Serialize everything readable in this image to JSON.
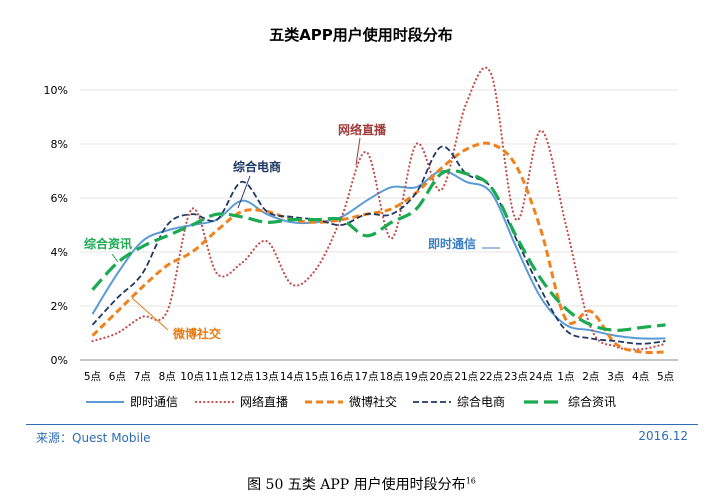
{
  "chart_data": {
    "type": "line",
    "title": "五类APP用户使用时段分布",
    "xlabel": "",
    "ylabel": "",
    "ylim": [
      0,
      10
    ],
    "yticks": [
      0,
      2,
      4,
      6,
      8,
      10
    ],
    "ytick_labels": [
      "0%",
      "2%",
      "4%",
      "6%",
      "8%",
      "10%"
    ],
    "categories": [
      "5点",
      "6点",
      "7点",
      "8点",
      "10点",
      "11点",
      "12点",
      "13点",
      "14点",
      "15点",
      "16点",
      "17点",
      "18点",
      "19点",
      "20点",
      "21点",
      "22点",
      "23点",
      "24点",
      "1点",
      "2点",
      "3点",
      "4点",
      "5点"
    ],
    "series": [
      {
        "name": "即时通信",
        "color": "#5b9bd5",
        "dash": "solid",
        "values": [
          1.7,
          3.2,
          4.4,
          4.8,
          5.0,
          5.2,
          5.9,
          5.4,
          5.1,
          5.1,
          5.3,
          5.9,
          6.4,
          6.4,
          7.0,
          6.6,
          6.2,
          4.2,
          2.3,
          1.3,
          1.1,
          0.9,
          0.8,
          0.8
        ]
      },
      {
        "name": "网络直播",
        "color": "#c0504d",
        "dash": "dot",
        "values": [
          0.7,
          1.0,
          1.6,
          1.8,
          5.6,
          3.2,
          3.6,
          4.4,
          2.8,
          3.4,
          5.3,
          7.7,
          4.5,
          8.0,
          6.3,
          9.5,
          10.6,
          5.2,
          8.5,
          5.0,
          1.2,
          0.5,
          0.4,
          0.6
        ]
      },
      {
        "name": "微博社交",
        "color": "#f0821e",
        "dash": "dash",
        "values": [
          0.9,
          1.8,
          2.7,
          3.5,
          4.0,
          4.8,
          5.5,
          5.5,
          5.2,
          5.1,
          5.2,
          5.4,
          5.6,
          6.2,
          7.1,
          7.8,
          8.0,
          7.2,
          4.8,
          1.5,
          1.8,
          0.6,
          0.3,
          0.3
        ]
      },
      {
        "name": "综合电商",
        "color": "#1f3864",
        "dash": "longdash",
        "values": [
          1.3,
          2.3,
          3.2,
          5.0,
          5.4,
          5.2,
          6.6,
          5.5,
          5.3,
          5.2,
          5.0,
          5.4,
          5.4,
          6.2,
          7.9,
          6.9,
          6.4,
          4.5,
          2.6,
          1.1,
          0.8,
          0.7,
          0.6,
          0.7
        ]
      },
      {
        "name": "综合资讯",
        "color": "#1aaa50",
        "dash": "bigdash",
        "values": [
          2.6,
          3.6,
          4.2,
          4.6,
          5.0,
          5.4,
          5.3,
          5.1,
          5.2,
          5.2,
          5.2,
          4.6,
          5.1,
          5.6,
          6.9,
          6.9,
          6.4,
          4.6,
          3.0,
          1.9,
          1.3,
          1.1,
          1.2,
          1.3
        ]
      }
    ],
    "annotations": [
      {
        "label": "网络直播",
        "series": "网络直播"
      },
      {
        "label": "综合电商",
        "series": "综合电商"
      },
      {
        "label": "综合资讯",
        "series": "综合资讯"
      },
      {
        "label": "微博社交",
        "series": "微博社交"
      },
      {
        "label": "即时通信",
        "series": "即时通信"
      }
    ],
    "legend": "bottom"
  },
  "footer": {
    "source": "来源：Quest Mobile",
    "date": "2016.12"
  },
  "caption": {
    "text": "图 50    五类 APP 用户使用时段分布",
    "footnote": "16"
  }
}
